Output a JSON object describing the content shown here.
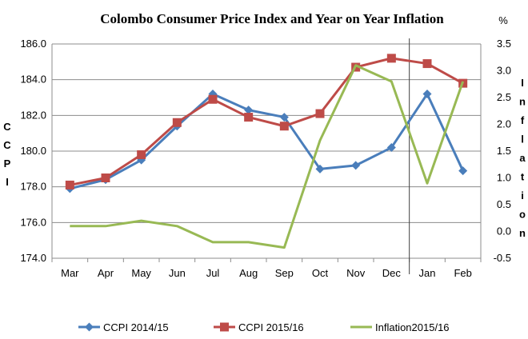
{
  "chart_data": {
    "type": "line",
    "title": "Colombo Consumer Price Index and Year on Year Inflation",
    "categories": [
      "Mar",
      "Apr",
      "May",
      "Jun",
      "Jul",
      "Aug",
      "Sep",
      "Oct",
      "Nov",
      "Dec",
      "Jan",
      "Feb"
    ],
    "ylabel_left": "CCPI",
    "ylabel_right": "Inflation",
    "right_axis_unit": "%",
    "ylim_left": [
      174.0,
      186.0
    ],
    "ylim_right": [
      -0.5,
      3.5
    ],
    "yticks_left": [
      "186.0",
      "184.0",
      "182.0",
      "180.0",
      "178.0",
      "176.0",
      "174.0"
    ],
    "yticks_right": [
      "3.5",
      "3.0",
      "2.5",
      "2.0",
      "1.5",
      "1.0",
      "0.5",
      "0.0",
      "-0.5"
    ],
    "series": [
      {
        "name": "CCPI 2014/15",
        "axis": "left",
        "marker": "diamond",
        "color": "#4a7ebb",
        "values": [
          177.9,
          178.4,
          179.5,
          181.4,
          183.2,
          182.3,
          181.9,
          179.0,
          179.2,
          180.2,
          183.2,
          178.9
        ]
      },
      {
        "name": "CCPI 2015/16",
        "axis": "left",
        "marker": "square",
        "color": "#be4b48",
        "values": [
          178.1,
          178.5,
          179.8,
          181.6,
          182.9,
          181.9,
          181.4,
          182.1,
          184.7,
          185.2,
          184.9,
          183.8
        ]
      },
      {
        "name": "Inflation2015/16",
        "axis": "right",
        "marker": "none",
        "color": "#98b954",
        "values": [
          0.1,
          0.1,
          0.2,
          0.1,
          -0.2,
          -0.2,
          -0.3,
          1.7,
          3.1,
          2.8,
          0.9,
          2.8
        ]
      }
    ],
    "divider_between": [
      "Dec",
      "Jan"
    ],
    "grid": "horizontal",
    "legend_position": "bottom"
  }
}
